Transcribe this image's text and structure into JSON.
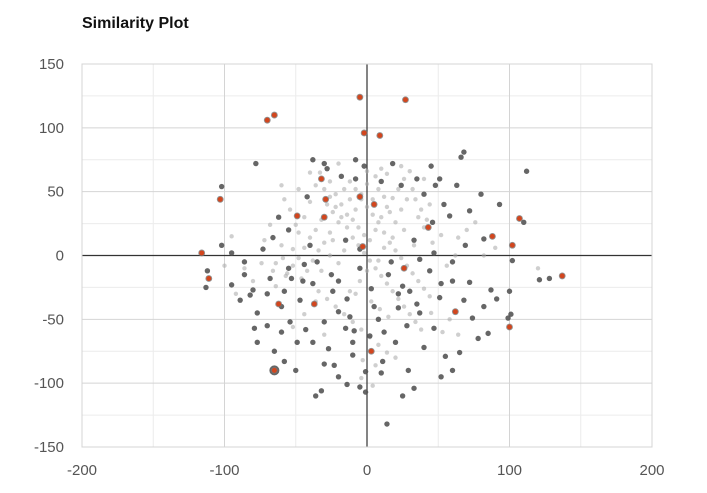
{
  "chart_data": {
    "type": "scatter",
    "title": "Similarity Plot",
    "xlabel": "",
    "ylabel": "",
    "xlim": [
      -200,
      200
    ],
    "ylim": [
      -150,
      150
    ],
    "x_ticks": [
      "-200",
      "-100",
      "0",
      "100",
      "200"
    ],
    "y_ticks": [
      "150",
      "100",
      "50",
      "0",
      "-50",
      "-100",
      "-150"
    ],
    "grid": true,
    "colors": {
      "neutral": "#555555",
      "faint": "#a8a8a8",
      "highlight": "#d2461e"
    },
    "series": [
      {
        "style": "highlight",
        "points": [
          [
            -5,
            124
          ],
          [
            27,
            122
          ],
          [
            -65,
            110
          ],
          [
            -70,
            106
          ],
          [
            -2,
            96
          ],
          [
            9,
            94
          ],
          [
            -103,
            44
          ],
          [
            -29,
            44
          ],
          [
            -5,
            46
          ],
          [
            -49,
            31
          ],
          [
            107,
            29
          ],
          [
            43,
            22
          ],
          [
            88,
            15
          ],
          [
            102,
            8
          ],
          [
            -3,
            7
          ],
          [
            -116,
            2
          ],
          [
            -111,
            -18
          ],
          [
            -62,
            -38
          ],
          [
            -37,
            -38
          ],
          [
            -30,
            30
          ],
          [
            26,
            -10
          ],
          [
            62,
            -44
          ],
          [
            100,
            -56
          ],
          [
            3,
            -75
          ],
          [
            -65,
            -90
          ],
          [
            137,
            -16
          ],
          [
            -32,
            60
          ],
          [
            5,
            40
          ]
        ]
      },
      {
        "style": "dark",
        "points": [
          [
            -65,
            -90
          ],
          [
            -102,
            54
          ],
          [
            -102,
            8
          ],
          [
            -112,
            -12
          ],
          [
            -113,
            -25
          ],
          [
            -89,
            -35
          ],
          [
            -82,
            -31
          ],
          [
            -79,
            -57
          ],
          [
            -70,
            -55
          ],
          [
            -80,
            -27
          ],
          [
            -60,
            -60
          ],
          [
            -43,
            -58
          ],
          [
            -38,
            -68
          ],
          [
            -27,
            -73
          ],
          [
            -10,
            -78
          ],
          [
            -14,
            -101
          ],
          [
            -32,
            -106
          ],
          [
            -36,
            -110
          ],
          [
            -23,
            -86
          ],
          [
            -5,
            -103
          ],
          [
            -1,
            -91
          ],
          [
            -1,
            -107
          ],
          [
            14,
            -132
          ],
          [
            33,
            -104
          ],
          [
            29,
            -90
          ],
          [
            40,
            -72
          ],
          [
            47,
            -57
          ],
          [
            55,
            -79
          ],
          [
            65,
            -76
          ],
          [
            74,
            -49
          ],
          [
            85,
            -61
          ],
          [
            99,
            -49
          ],
          [
            101,
            -46
          ],
          [
            87,
            -27
          ],
          [
            91,
            -34
          ],
          [
            100,
            -28
          ],
          [
            121,
            -19
          ],
          [
            128,
            -18
          ],
          [
            112,
            66
          ],
          [
            110,
            26
          ],
          [
            102,
            -4
          ],
          [
            82,
            13
          ],
          [
            80,
            48
          ],
          [
            68,
            81
          ],
          [
            66,
            77
          ],
          [
            63,
            55
          ],
          [
            54,
            40
          ],
          [
            48,
            55
          ],
          [
            46,
            26
          ],
          [
            33,
            12
          ],
          [
            37,
            -3
          ],
          [
            25,
            -24
          ],
          [
            22,
            -41
          ],
          [
            8,
            -50
          ],
          [
            12,
            -60
          ],
          [
            2,
            -63
          ],
          [
            -9,
            -59
          ],
          [
            -14,
            -34
          ],
          [
            -20,
            -20
          ],
          [
            -38,
            -22
          ],
          [
            -44,
            -7
          ],
          [
            -53,
            -18
          ],
          [
            -40,
            8
          ],
          [
            -55,
            20
          ],
          [
            -66,
            14
          ],
          [
            -73,
            5
          ],
          [
            -95,
            2
          ],
          [
            -86,
            -5
          ],
          [
            -77,
            -68
          ],
          [
            -58,
            -83
          ],
          [
            -49,
            -68
          ],
          [
            -30,
            -52
          ],
          [
            -20,
            -44
          ],
          [
            -15,
            -57
          ],
          [
            11,
            -83
          ],
          [
            20,
            -68
          ],
          [
            37,
            -45
          ],
          [
            51,
            -33
          ],
          [
            60,
            -20
          ],
          [
            44,
            -12
          ],
          [
            30,
            -28
          ],
          [
            15,
            -15
          ],
          [
            5,
            -40
          ],
          [
            -5,
            -10
          ],
          [
            -25,
            -15
          ],
          [
            -35,
            -5
          ],
          [
            -47,
            -35
          ],
          [
            -54,
            -52
          ],
          [
            -60,
            -40
          ],
          [
            -68,
            -18
          ],
          [
            -77,
            -45
          ],
          [
            60,
            -90
          ],
          [
            47,
            2
          ],
          [
            69,
            8
          ],
          [
            58,
            31
          ],
          [
            51,
            60
          ],
          [
            45,
            70
          ],
          [
            72,
            35
          ],
          [
            93,
            40
          ],
          [
            60,
            -5
          ],
          [
            72,
            -21
          ],
          [
            82,
            -40
          ],
          [
            -38,
            75
          ],
          [
            -30,
            72
          ],
          [
            -28,
            68
          ],
          [
            -8,
            75
          ],
          [
            -2,
            70
          ],
          [
            18,
            72
          ],
          [
            24,
            55
          ],
          [
            -78,
            72
          ],
          [
            -42,
            46
          ],
          [
            -62,
            30
          ],
          [
            -95,
            -23
          ],
          [
            -18,
            62
          ],
          [
            -8,
            60
          ],
          [
            10,
            58
          ],
          [
            35,
            60
          ],
          [
            40,
            48
          ],
          [
            -55,
            -10
          ],
          [
            -70,
            -30
          ],
          [
            -86,
            -15
          ],
          [
            -65,
            -75
          ],
          [
            -50,
            -90
          ],
          [
            -20,
            -95
          ],
          [
            25,
            -110
          ],
          [
            52,
            -95
          ],
          [
            78,
            -65
          ],
          [
            -45,
            -20
          ],
          [
            -24,
            -28
          ],
          [
            -12,
            -48
          ],
          [
            3,
            -26
          ],
          [
            17,
            -5
          ],
          [
            28,
            -55
          ],
          [
            52,
            -22
          ],
          [
            -10,
            -68
          ],
          [
            -30,
            -85
          ],
          [
            -5,
            5
          ],
          [
            10,
            -92
          ],
          [
            35,
            -38
          ],
          [
            -15,
            12
          ],
          [
            22,
            -30
          ],
          [
            68,
            -35
          ],
          [
            -58,
            -28
          ]
        ]
      },
      {
        "style": "light",
        "points": [
          [
            -72,
            12
          ],
          [
            -66,
            -12
          ],
          [
            -59,
            -2
          ],
          [
            -52,
            5
          ],
          [
            -57,
            -16
          ],
          [
            -48,
            18
          ],
          [
            -44,
            30
          ],
          [
            -40,
            42
          ],
          [
            -36,
            55
          ],
          [
            -33,
            65
          ],
          [
            -26,
            58
          ],
          [
            -22,
            48
          ],
          [
            -18,
            40
          ],
          [
            -14,
            32
          ],
          [
            -10,
            28
          ],
          [
            -6,
            22
          ],
          [
            -2,
            16
          ],
          [
            2,
            12
          ],
          [
            6,
            20
          ],
          [
            10,
            30
          ],
          [
            14,
            38
          ],
          [
            18,
            45
          ],
          [
            22,
            52
          ],
          [
            26,
            60
          ],
          [
            30,
            66
          ],
          [
            34,
            44
          ],
          [
            38,
            36
          ],
          [
            42,
            28
          ],
          [
            6,
            62
          ],
          [
            10,
            68
          ],
          [
            14,
            64
          ],
          [
            -20,
            26
          ],
          [
            -26,
            18
          ],
          [
            -30,
            10
          ],
          [
            -34,
            4
          ],
          [
            -38,
            -4
          ],
          [
            -42,
            -12
          ],
          [
            -46,
            -18
          ],
          [
            -50,
            24
          ],
          [
            -54,
            36
          ],
          [
            -58,
            44
          ],
          [
            -24,
            34
          ],
          [
            -16,
            52
          ],
          [
            -12,
            44
          ],
          [
            -8,
            36
          ],
          [
            -4,
            48
          ],
          [
            0,
            56
          ],
          [
            4,
            44
          ],
          [
            8,
            52
          ],
          [
            12,
            46
          ],
          [
            16,
            34
          ],
          [
            20,
            26
          ],
          [
            24,
            36
          ],
          [
            28,
            44
          ],
          [
            32,
            52
          ],
          [
            36,
            30
          ],
          [
            40,
            22
          ],
          [
            44,
            40
          ],
          [
            -28,
            40
          ],
          [
            -32,
            28
          ],
          [
            -36,
            20
          ],
          [
            -40,
            14
          ],
          [
            -44,
            6
          ],
          [
            -48,
            -2
          ],
          [
            -52,
            -8
          ],
          [
            -56,
            -14
          ],
          [
            -60,
            8
          ],
          [
            -64,
            -6
          ],
          [
            -30,
            52
          ],
          [
            -26,
            46
          ],
          [
            -22,
            38
          ],
          [
            -18,
            30
          ],
          [
            -14,
            22
          ],
          [
            -10,
            14
          ],
          [
            -6,
            8
          ],
          [
            -2,
            2
          ],
          [
            2,
            -4
          ],
          [
            6,
            -10
          ],
          [
            10,
            -16
          ],
          [
            14,
            -22
          ],
          [
            18,
            -28
          ],
          [
            22,
            -34
          ],
          [
            26,
            -40
          ],
          [
            30,
            -46
          ],
          [
            34,
            -52
          ],
          [
            38,
            -58
          ],
          [
            -12,
            58
          ],
          [
            -8,
            52
          ],
          [
            -4,
            44
          ],
          [
            0,
            38
          ],
          [
            4,
            32
          ],
          [
            8,
            26
          ],
          [
            12,
            18
          ],
          [
            16,
            10
          ],
          [
            20,
            4
          ],
          [
            24,
            -2
          ],
          [
            28,
            -8
          ],
          [
            32,
            -14
          ],
          [
            36,
            -20
          ],
          [
            40,
            -26
          ],
          [
            44,
            -32
          ],
          [
            -34,
            -28
          ],
          [
            -28,
            -34
          ],
          [
            -22,
            -40
          ],
          [
            -16,
            -46
          ],
          [
            -10,
            -52
          ],
          [
            -4,
            -58
          ],
          [
            2,
            -64
          ],
          [
            8,
            -70
          ],
          [
            14,
            -76
          ],
          [
            -68,
            24
          ],
          [
            -74,
            -6
          ],
          [
            -80,
            -20
          ],
          [
            -64,
            -24
          ],
          [
            12,
            6
          ],
          [
            18,
            14
          ],
          [
            26,
            20
          ],
          [
            33,
            8
          ],
          [
            46,
            10
          ],
          [
            52,
            16
          ],
          [
            56,
            -8
          ],
          [
            62,
            0
          ],
          [
            64,
            14
          ],
          [
            70,
            20
          ],
          [
            76,
            26
          ],
          [
            -5,
            -20
          ],
          [
            -12,
            -28
          ],
          [
            -20,
            -6
          ],
          [
            -26,
            0
          ],
          [
            -32,
            -12
          ],
          [
            3,
            -36
          ],
          [
            9,
            -42
          ],
          [
            15,
            -48
          ],
          [
            -86,
            -10
          ],
          [
            -92,
            -30
          ],
          [
            -44,
            -46
          ],
          [
            -52,
            -56
          ],
          [
            -8,
            -30
          ],
          [
            0,
            -12
          ],
          [
            8,
            -4
          ],
          [
            40,
            60
          ],
          [
            -40,
            65
          ],
          [
            -48,
            52
          ],
          [
            -20,
            72
          ],
          [
            0,
            66
          ],
          [
            24,
            70
          ],
          [
            -60,
            55
          ],
          [
            -30,
            -62
          ],
          [
            58,
            -50
          ],
          [
            82,
            0
          ],
          [
            90,
            6
          ],
          [
            -95,
            15
          ],
          [
            -100,
            -8
          ],
          [
            -24,
            12
          ],
          [
            -16,
            4
          ],
          [
            -36,
            -36
          ],
          [
            45,
            -45
          ],
          [
            53,
            -60
          ],
          [
            64,
            -62
          ],
          [
            120,
            -10
          ],
          [
            -3,
            -82
          ],
          [
            6,
            -86
          ],
          [
            20,
            -80
          ],
          [
            -4,
            -96
          ],
          [
            4,
            -102
          ]
        ]
      }
    ]
  }
}
